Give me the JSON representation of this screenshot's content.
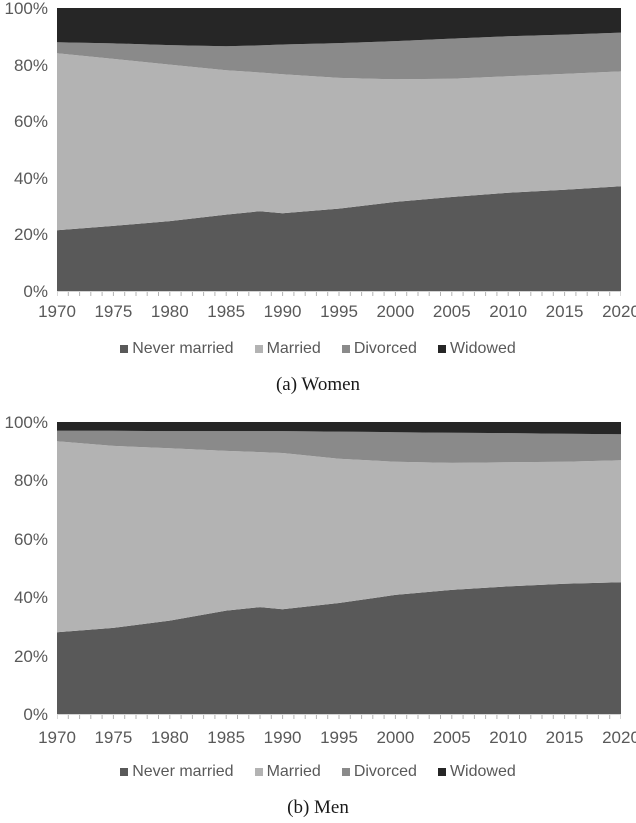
{
  "colors": {
    "never_married": "#595959",
    "married": "#b3b3b3",
    "divorced": "#8a8a8a",
    "widowed": "#262626",
    "axis_line": "#d4d4d4",
    "tick": "#b3b3b3",
    "label_text": "#595959",
    "caption_text": "#1a1a1a"
  },
  "legend": {
    "items": [
      {
        "label": "Never married",
        "color_key": "never_married"
      },
      {
        "label": "Married",
        "color_key": "married"
      },
      {
        "label": "Divorced",
        "color_key": "divorced"
      },
      {
        "label": "Widowed",
        "color_key": "widowed"
      }
    ]
  },
  "chart_data": [
    {
      "type": "area",
      "stacked": true,
      "percent_scale": true,
      "title": "(a) Women",
      "x": [
        1970,
        1975,
        1980,
        1985,
        1988,
        1990,
        1995,
        2000,
        2005,
        2010,
        2015,
        2020
      ],
      "series": [
        {
          "name": "Never married",
          "color_key": "never_married",
          "values": [
            21.5,
            23.0,
            24.7,
            27.0,
            28.2,
            27.5,
            29.1,
            31.5,
            33.2,
            34.7,
            35.8,
            37.0
          ]
        },
        {
          "name": "Married",
          "color_key": "married",
          "values": [
            62.5,
            59.0,
            55.3,
            51.0,
            49.0,
            49.1,
            46.2,
            43.3,
            41.8,
            41.2,
            40.9,
            40.6
          ]
        },
        {
          "name": "Divorced",
          "color_key": "divorced",
          "values": [
            3.9,
            5.5,
            6.9,
            8.5,
            9.6,
            10.5,
            12.3,
            13.5,
            14.2,
            14.1,
            13.9,
            13.7
          ]
        },
        {
          "name": "Widowed",
          "color_key": "widowed",
          "values": [
            12.1,
            12.5,
            13.1,
            13.5,
            13.2,
            12.9,
            12.4,
            11.7,
            10.8,
            10.0,
            9.4,
            8.7
          ]
        }
      ],
      "xlim": [
        1970,
        2020
      ],
      "ylim": [
        0,
        100
      ],
      "ytick_values": [
        0,
        20,
        40,
        60,
        80,
        100
      ],
      "ytick_labels": [
        "0%",
        "20%",
        "40%",
        "60%",
        "80%",
        "100%"
      ],
      "xtick_labels": [
        "1970",
        "1975",
        "1980",
        "1985",
        "1990",
        "1995",
        "2000",
        "2005",
        "2010",
        "2015",
        "2020"
      ],
      "grid": false,
      "legend_position": "bottom"
    },
    {
      "type": "area",
      "stacked": true,
      "percent_scale": true,
      "title": "(b) Men",
      "x": [
        1970,
        1975,
        1980,
        1985,
        1988,
        1990,
        1995,
        2000,
        2005,
        2010,
        2015,
        2020
      ],
      "series": [
        {
          "name": "Never married",
          "color_key": "never_married",
          "values": [
            28.0,
            29.5,
            32.0,
            35.4,
            36.6,
            35.9,
            38.0,
            40.8,
            42.5,
            43.7,
            44.6,
            45.1
          ]
        },
        {
          "name": "Married",
          "color_key": "married",
          "values": [
            65.4,
            62.3,
            59.0,
            54.7,
            53.1,
            53.5,
            49.4,
            45.6,
            43.5,
            42.5,
            41.8,
            41.8
          ]
        },
        {
          "name": "Divorced",
          "color_key": "divorced",
          "values": [
            3.6,
            5.2,
            5.9,
            6.8,
            7.2,
            7.5,
            9.3,
            10.1,
            10.3,
            10.0,
            9.6,
            8.9
          ]
        },
        {
          "name": "Widowed",
          "color_key": "widowed",
          "values": [
            3.0,
            3.0,
            3.1,
            3.1,
            3.1,
            3.1,
            3.3,
            3.5,
            3.7,
            3.8,
            4.0,
            4.2
          ]
        }
      ],
      "xlim": [
        1970,
        2020
      ],
      "ylim": [
        0,
        100
      ],
      "ytick_values": [
        0,
        20,
        40,
        60,
        80,
        100
      ],
      "ytick_labels": [
        "0%",
        "20%",
        "40%",
        "60%",
        "80%",
        "100%"
      ],
      "xtick_labels": [
        "1970",
        "1975",
        "1980",
        "1985",
        "1990",
        "1995",
        "2000",
        "2005",
        "2010",
        "2015",
        "2020"
      ],
      "grid": false,
      "legend_position": "bottom"
    }
  ]
}
